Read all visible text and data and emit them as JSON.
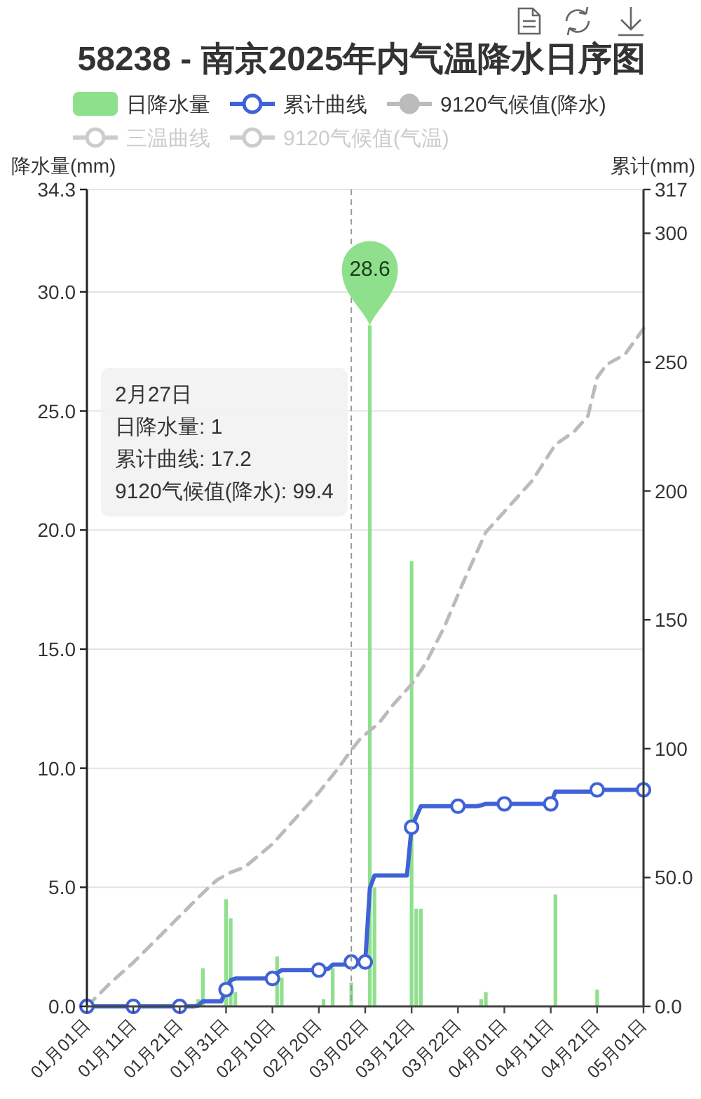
{
  "chart_data": {
    "type": "bar",
    "title": "58238 - 南京2025年内气温降水日序图",
    "ylabel": "降水量(mm)",
    "y2label": "累计(mm)",
    "xlim": [
      "2025-01-01",
      "2025-05-01"
    ],
    "xticks": [
      {
        "value": "2025-01-01",
        "label": "01月01日"
      },
      {
        "value": "2025-01-11",
        "label": "01月11日"
      },
      {
        "value": "2025-01-21",
        "label": "01月21日"
      },
      {
        "value": "2025-01-31",
        "label": "01月31日"
      },
      {
        "value": "2025-02-10",
        "label": "02月10日"
      },
      {
        "value": "2025-02-20",
        "label": "02月20日"
      },
      {
        "value": "2025-03-02",
        "label": "03月02日"
      },
      {
        "value": "2025-03-12",
        "label": "03月12日"
      },
      {
        "value": "2025-03-22",
        "label": "03月22日"
      },
      {
        "value": "2025-04-01",
        "label": "04月01日"
      },
      {
        "value": "2025-04-11",
        "label": "04月11日"
      },
      {
        "value": "2025-04-21",
        "label": "04月21日"
      },
      {
        "value": "2025-05-01",
        "label": "05月01日"
      }
    ],
    "ylim": [
      0,
      34.3
    ],
    "yticks": [
      {
        "value": 0,
        "label": "0.0"
      },
      {
        "value": 5,
        "label": "5.0"
      },
      {
        "value": 10,
        "label": "10.0"
      },
      {
        "value": 15,
        "label": "15.0"
      },
      {
        "value": 20,
        "label": "20.0"
      },
      {
        "value": 25,
        "label": "25.0"
      },
      {
        "value": 30,
        "label": "30.0"
      },
      34.3
    ],
    "y2lim": [
      0,
      317
    ],
    "y2ticks": [
      {
        "value": 0,
        "label": "0.0"
      },
      {
        "value": 50,
        "label": "50.0"
      },
      100,
      150,
      200,
      250,
      300,
      317
    ],
    "grid": "y",
    "legend": "top",
    "series": [
      {
        "name": "日降水量",
        "color": "#8fe08c",
        "x": [
          "2025-01-25",
          "2025-01-26",
          "2025-01-31",
          "2025-02-01",
          "2025-02-02",
          "2025-02-11",
          "2025-02-12",
          "2025-02-21",
          "2025-02-23",
          "2025-02-27",
          "2025-03-03",
          "2025-03-04",
          "2025-03-12",
          "2025-03-13",
          "2025-03-14",
          "2025-03-27",
          "2025-03-28",
          "2025-04-12",
          "2025-04-21"
        ],
        "values": [
          0.3,
          1.6,
          4.5,
          3.7,
          0.6,
          2.1,
          1.2,
          0.3,
          1.6,
          1,
          28.6,
          5.0,
          18.7,
          4.1,
          4.1,
          0.3,
          0.6,
          4.7,
          0.7
        ]
      },
      {
        "name": "累计曲线",
        "type": "line",
        "axis": "y2",
        "color": "#3f62d6",
        "x": [
          "2025-01-01",
          "2025-01-11",
          "2025-01-21",
          "2025-01-24",
          "2025-01-25",
          "2025-01-26",
          "2025-01-30",
          "2025-01-31",
          "2025-02-01",
          "2025-02-02",
          "2025-02-10",
          "2025-02-11",
          "2025-02-12",
          "2025-02-20",
          "2025-02-21",
          "2025-02-22",
          "2025-02-23",
          "2025-02-26",
          "2025-02-27",
          "2025-03-02",
          "2025-03-03",
          "2025-03-04",
          "2025-03-11",
          "2025-03-12",
          "2025-03-13",
          "2025-03-14",
          "2025-03-22",
          "2025-03-26",
          "2025-03-27",
          "2025-03-28",
          "2025-04-01",
          "2025-04-11",
          "2025-04-12",
          "2025-04-20",
          "2025-04-21",
          "2025-05-01"
        ],
        "values": [
          0,
          0,
          0,
          0,
          0.3,
          2.0,
          2.0,
          6.5,
          10.2,
          10.8,
          10.8,
          12.9,
          14.1,
          14.1,
          14.5,
          14.5,
          16.2,
          16.2,
          17.2,
          17.2,
          45.8,
          50.8,
          50.8,
          69.5,
          73.6,
          77.7,
          77.7,
          77.7,
          78.0,
          78.6,
          78.6,
          78.6,
          83.3,
          83.3,
          84.0,
          84.0
        ]
      },
      {
        "name": "9120气候值(降水)",
        "type": "line",
        "axis": "y2",
        "color": "#bbbbbb",
        "line_style": "dashed",
        "x": [
          "2025-01-01",
          "2025-01-06",
          "2025-01-11",
          "2025-01-16",
          "2025-01-21",
          "2025-01-26",
          "2025-01-29",
          "2025-02-01",
          "2025-02-04",
          "2025-02-10",
          "2025-02-15",
          "2025-02-20",
          "2025-02-24",
          "2025-02-27",
          "2025-03-01",
          "2025-03-05",
          "2025-03-08",
          "2025-03-12",
          "2025-03-15",
          "2025-03-19",
          "2025-03-23",
          "2025-03-28",
          "2025-04-04",
          "2025-04-07",
          "2025-04-12",
          "2025-04-16",
          "2025-04-19",
          "2025-04-21",
          "2025-04-23",
          "2025-04-27",
          "2025-05-01"
        ],
        "values": [
          0,
          9,
          17,
          26,
          35,
          44,
          49,
          52,
          54,
          63,
          73,
          83,
          92,
          99.4,
          104,
          110,
          117,
          125,
          133,
          147,
          164,
          184,
          198,
          204,
          218,
          223,
          229,
          244,
          249,
          253,
          263
        ]
      },
      {
        "name": "三温曲线",
        "type": "line",
        "color": "#cccccc"
      },
      {
        "name": "9120气候值(气温)",
        "type": "line",
        "color": "#cccccc"
      },
      {
        "type": "scatter",
        "axis": "y2",
        "color": "#3f62d6",
        "marker": "circle",
        "x": [
          "2025-01-01",
          "2025-01-11",
          "2025-01-21",
          "2025-01-31",
          "2025-02-10",
          "2025-02-20",
          "2025-02-27",
          "2025-03-02",
          "2025-03-12",
          "2025-03-22",
          "2025-04-01",
          "2025-04-11",
          "2025-04-21",
          "2025-05-01"
        ],
        "values": [
          0,
          0,
          0,
          6.5,
          10.8,
          14.1,
          17.2,
          17.2,
          69.5,
          77.7,
          78.6,
          78.6,
          84.0,
          84.0
        ]
      }
    ],
    "ref_lines": [
      {
        "axis": "x",
        "value": "2025-02-27",
        "color": "#999999",
        "line_style": "dashed"
      }
    ],
    "annotations": [
      {
        "text": "28.6",
        "x": "2025-03-03",
        "y": 28.6
      },
      "2月27日",
      "日降水量: 1",
      "累计曲线: 17.2",
      "9120气候值(降水): 99.4"
    ]
  }
}
